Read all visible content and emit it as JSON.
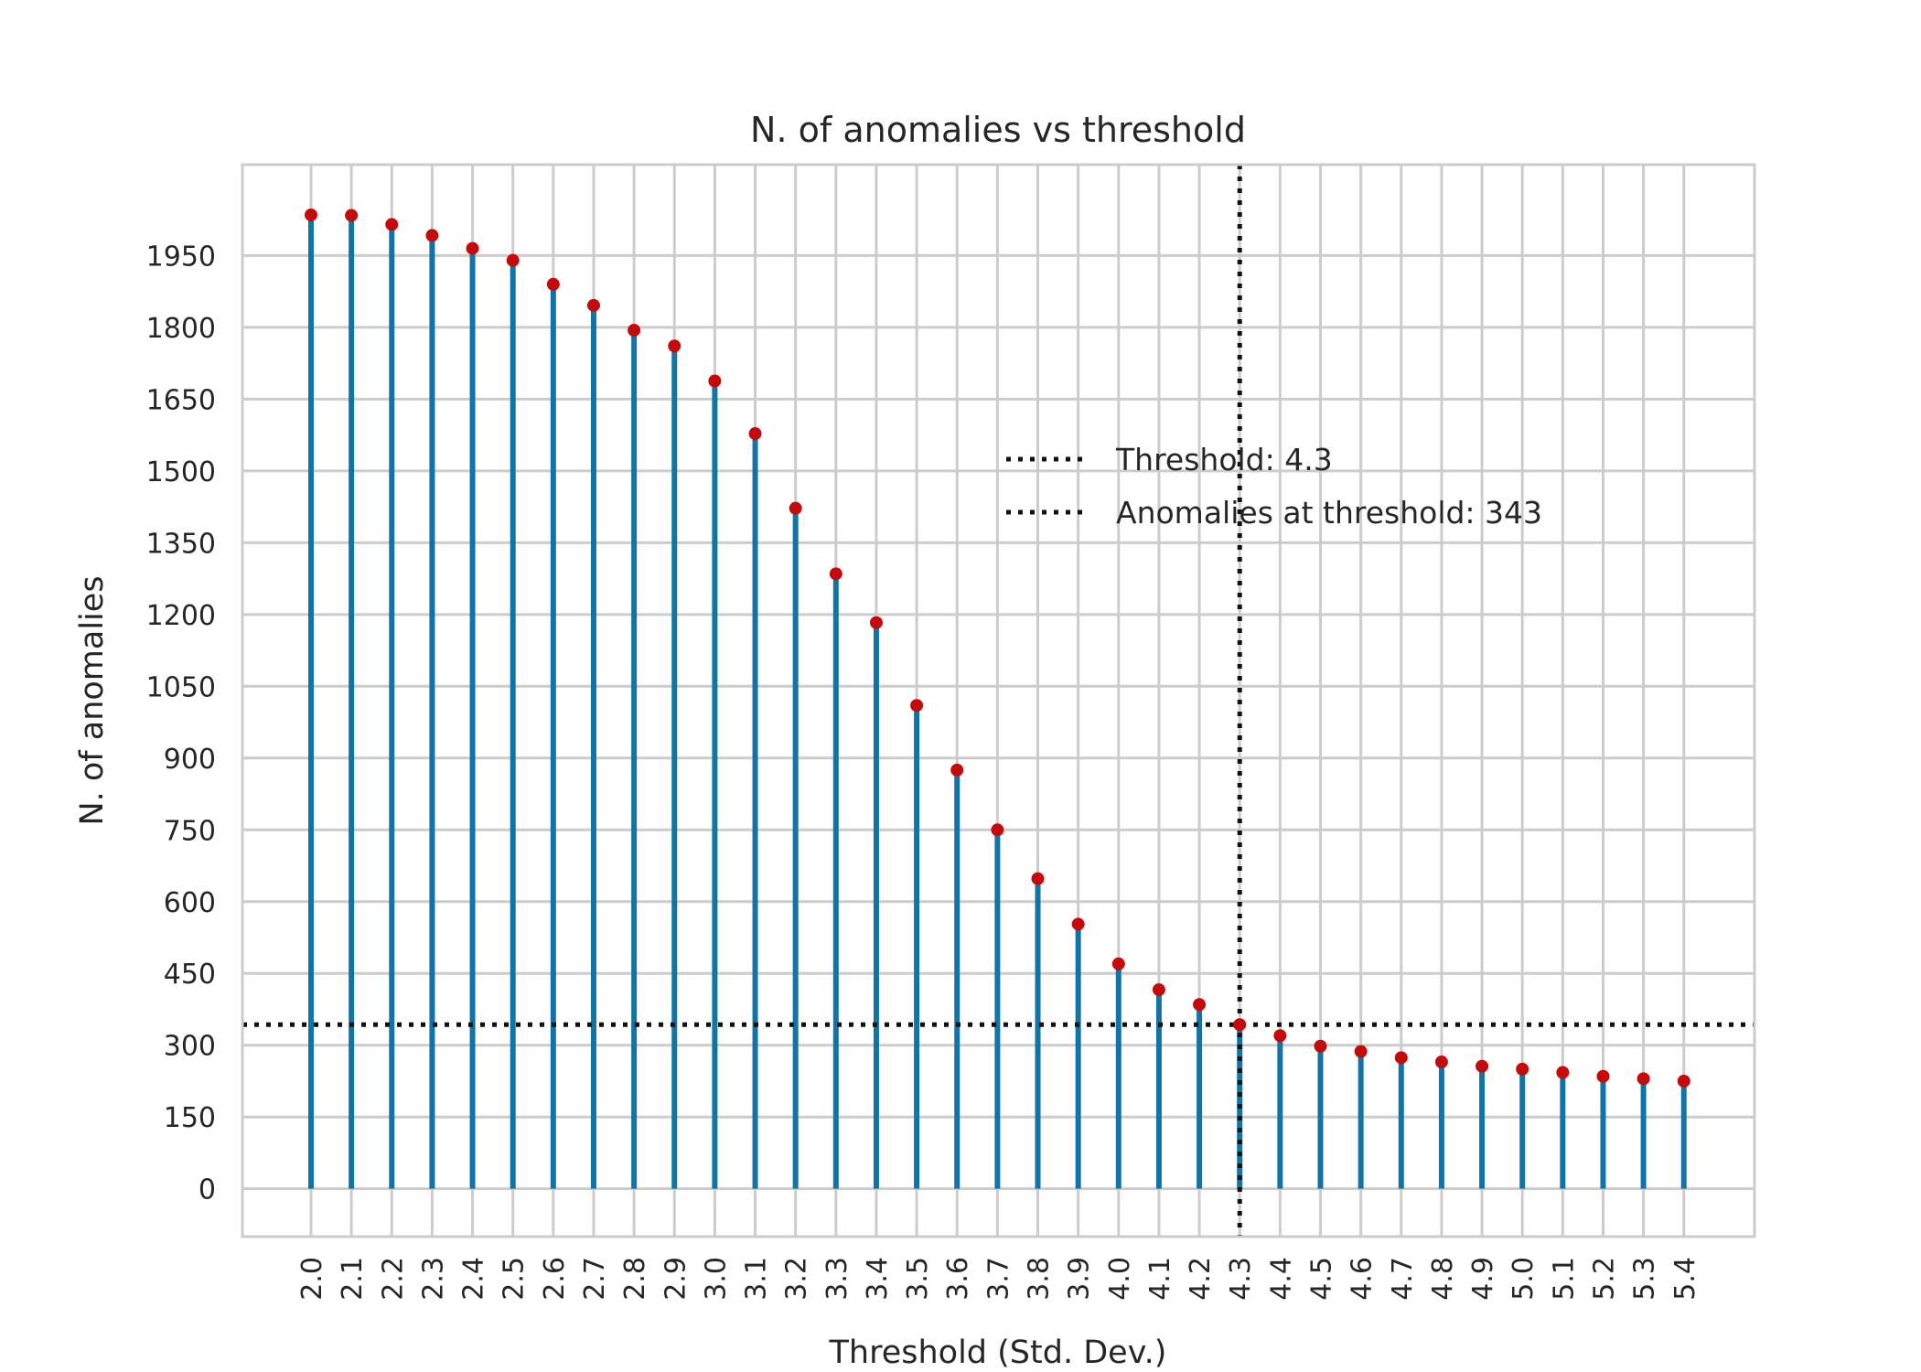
{
  "chart_data": {
    "type": "stem",
    "title": "N. of anomalies vs threshold",
    "xlabel": "Threshold (Std. Dev.)",
    "ylabel": "N. of anomalies",
    "x": [
      2.0,
      2.1,
      2.2,
      2.3,
      2.4,
      2.5,
      2.6,
      2.7,
      2.8,
      2.9,
      3.0,
      3.1,
      3.2,
      3.3,
      3.4,
      3.5,
      3.6,
      3.7,
      3.8,
      3.9,
      4.0,
      4.1,
      4.2,
      4.3,
      4.4,
      4.5,
      4.6,
      4.7,
      4.8,
      4.9,
      5.0,
      5.1,
      5.2,
      5.3,
      5.4
    ],
    "x_tick_labels": [
      "2.0",
      "2.1",
      "2.2",
      "2.3",
      "2.4",
      "2.5",
      "2.6",
      "2.7",
      "2.8",
      "2.9",
      "3.0",
      "3.1",
      "3.2",
      "3.3",
      "3.4",
      "3.5",
      "3.6",
      "3.7",
      "3.8",
      "3.9",
      "4.0",
      "4.1",
      "4.2",
      "4.3",
      "4.4",
      "4.5",
      "4.6",
      "4.7",
      "4.8",
      "4.9",
      "5.0",
      "5.1",
      "5.2",
      "5.3",
      "5.4"
    ],
    "values": [
      2035,
      2034,
      2015,
      1992,
      1965,
      1940,
      1890,
      1846,
      1794,
      1761,
      1688,
      1578,
      1422,
      1285,
      1183,
      1010,
      875,
      750,
      648,
      553,
      470,
      416,
      385,
      343,
      320,
      298,
      287,
      274,
      265,
      256,
      250,
      243,
      235,
      230,
      225
    ],
    "y_ticks": [
      0,
      150,
      300,
      450,
      600,
      750,
      900,
      1050,
      1200,
      1350,
      1500,
      1650,
      1800,
      1950
    ],
    "ylim": [
      -100,
      2140
    ],
    "grid": true,
    "legend_placement": "center-right",
    "threshold_line": {
      "x": 4.3
    },
    "anomalies_line": {
      "y": 343
    },
    "legend": [
      {
        "label": "Threshold: 4.3"
      },
      {
        "label": "Anomalies at threshold: 343"
      }
    ],
    "colors": {
      "stem": "#1174a6",
      "marker": "#c40a0a",
      "reference": "#111111",
      "grid": "#cccccc"
    }
  }
}
